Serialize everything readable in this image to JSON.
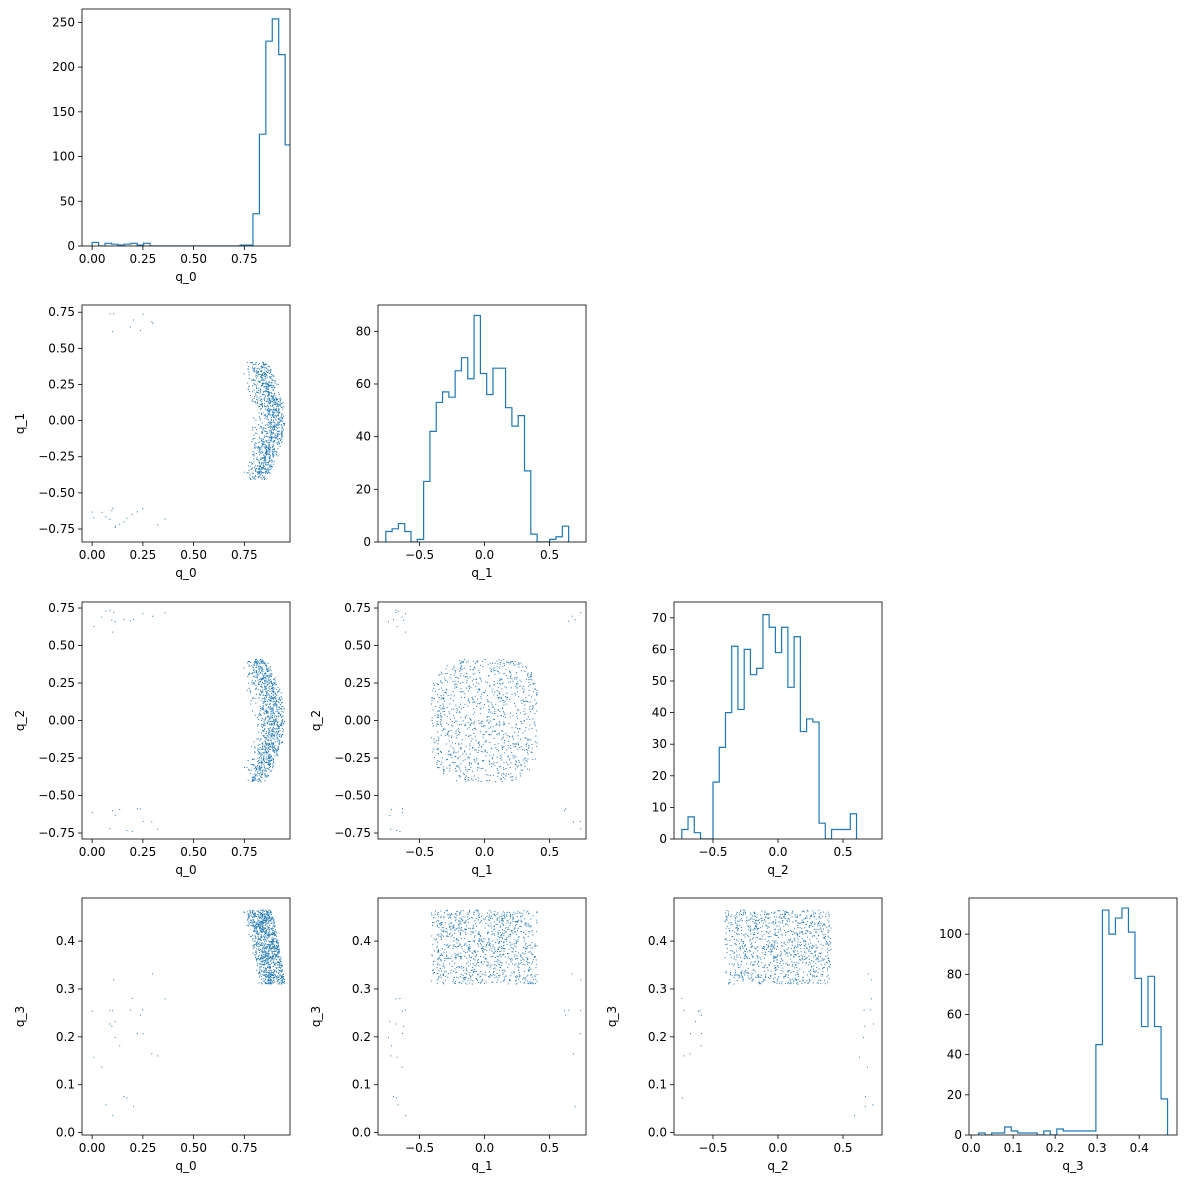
{
  "figure": {
    "type": "corner-plot",
    "variables": [
      "q_0",
      "q_1",
      "q_2",
      "q_3"
    ],
    "color": "#1f77b4"
  },
  "chart_data": [
    {
      "type": "histogram",
      "row": 0,
      "col": 0,
      "xvar": "q_0",
      "xlabel": "q_0",
      "ylabel": "",
      "xlim": [
        -0.05,
        0.975
      ],
      "ylim": [
        0,
        265
      ],
      "xticks": [
        0.0,
        0.25,
        0.5,
        0.75
      ],
      "xtick_labels": [
        "0.00",
        "0.25",
        "0.50",
        "0.75"
      ],
      "yticks": [
        0,
        50,
        100,
        150,
        200,
        250
      ],
      "ytick_labels": [
        "0",
        "50",
        "100",
        "150",
        "200",
        "250"
      ],
      "bin_start": 0.0,
      "bin_width": 0.0317,
      "counts": [
        4,
        0,
        3,
        2,
        1,
        2,
        3,
        1,
        3,
        0,
        0,
        0,
        0,
        0,
        0,
        0,
        0,
        0,
        0,
        0,
        0,
        0,
        0,
        1,
        1,
        36,
        125,
        229,
        254,
        214,
        113
      ]
    },
    {
      "type": "histogram",
      "row": 1,
      "col": 1,
      "xvar": "q_1",
      "xlabel": "q_1",
      "ylabel": "",
      "xlim": [
        -0.82,
        0.78
      ],
      "ylim": [
        0,
        90
      ],
      "xticks": [
        -0.5,
        0.0,
        0.5
      ],
      "xtick_labels": [
        "−0.5",
        "0.0",
        "0.5"
      ],
      "yticks": [
        0,
        20,
        40,
        60,
        80
      ],
      "ytick_labels": [
        "0",
        "20",
        "40",
        "60",
        "80"
      ],
      "bin_start": -0.76,
      "bin_width": 0.0485,
      "counts": [
        4,
        5,
        7,
        4,
        0,
        1,
        23,
        42,
        53,
        57,
        55,
        65,
        70,
        62,
        86,
        64,
        56,
        66,
        66,
        51,
        44,
        48,
        27,
        3,
        0,
        0,
        1,
        2,
        6
      ]
    },
    {
      "type": "histogram",
      "row": 2,
      "col": 2,
      "xvar": "q_2",
      "xlabel": "q_2",
      "ylabel": "",
      "xlim": [
        -0.8,
        0.8
      ],
      "ylim": [
        0,
        75
      ],
      "xticks": [
        -0.5,
        0.0,
        0.5
      ],
      "xtick_labels": [
        "−0.5",
        "0.0",
        "0.5"
      ],
      "yticks": [
        0,
        10,
        20,
        30,
        40,
        50,
        60,
        70
      ],
      "ytick_labels": [
        "0",
        "10",
        "20",
        "30",
        "40",
        "50",
        "60",
        "70"
      ],
      "bin_start": -0.74,
      "bin_width": 0.048,
      "counts": [
        3,
        7,
        2,
        0,
        0,
        18,
        29,
        40,
        61,
        41,
        60,
        52,
        54,
        71,
        67,
        59,
        67,
        48,
        64,
        34,
        38,
        37,
        5,
        0,
        3,
        3,
        3,
        8
      ]
    },
    {
      "type": "histogram",
      "row": 3,
      "col": 3,
      "xvar": "q_3",
      "xlabel": "q_3",
      "ylabel": "",
      "xlim": [
        -0.005,
        0.49
      ],
      "ylim": [
        0,
        118
      ],
      "xticks": [
        0.0,
        0.1,
        0.2,
        0.3,
        0.4
      ],
      "xtick_labels": [
        "0.0",
        "0.1",
        "0.2",
        "0.3",
        "0.4"
      ],
      "yticks": [
        0,
        20,
        40,
        60,
        80,
        100
      ],
      "ytick_labels": [
        "0",
        "20",
        "40",
        "60",
        "80",
        "100"
      ],
      "bin_start": 0.018,
      "bin_width": 0.0155,
      "counts": [
        1,
        0,
        1,
        1,
        4,
        2,
        1,
        1,
        1,
        0,
        2,
        0,
        3,
        2,
        2,
        2,
        2,
        2,
        45,
        112,
        100,
        108,
        113,
        101,
        78,
        54,
        79,
        54,
        18
      ]
    },
    {
      "type": "scatter",
      "row": 1,
      "col": 0,
      "xvar": "q_0",
      "yvar": "q_1",
      "xlabel": "q_0",
      "ylabel": "q_1",
      "xlim": [
        -0.05,
        0.975
      ],
      "ylim": [
        -0.84,
        0.8
      ],
      "xticks": [
        0.0,
        0.25,
        0.5,
        0.75
      ],
      "xtick_labels": [
        "0.00",
        "0.25",
        "0.50",
        "0.75"
      ],
      "yticks": [
        -0.75,
        -0.5,
        -0.25,
        0.0,
        0.25,
        0.5,
        0.75
      ],
      "ytick_labels": [
        "−0.75",
        "−0.50",
        "−0.25",
        "0.00",
        "0.25",
        "0.50",
        "0.75"
      ]
    },
    {
      "type": "scatter",
      "row": 2,
      "col": 0,
      "xvar": "q_0",
      "yvar": "q_2",
      "xlabel": "q_0",
      "ylabel": "q_2",
      "xlim": [
        -0.05,
        0.975
      ],
      "ylim": [
        -0.79,
        0.79
      ],
      "xticks": [
        0.0,
        0.25,
        0.5,
        0.75
      ],
      "xtick_labels": [
        "0.00",
        "0.25",
        "0.50",
        "0.75"
      ],
      "yticks": [
        -0.75,
        -0.5,
        -0.25,
        0.0,
        0.25,
        0.5,
        0.75
      ],
      "ytick_labels": [
        "−0.75",
        "−0.50",
        "−0.25",
        "0.00",
        "0.25",
        "0.50",
        "0.75"
      ]
    },
    {
      "type": "scatter",
      "row": 2,
      "col": 1,
      "xvar": "q_1",
      "yvar": "q_2",
      "xlabel": "q_1",
      "ylabel": "q_2",
      "xlim": [
        -0.82,
        0.78
      ],
      "ylim": [
        -0.79,
        0.79
      ],
      "xticks": [
        -0.5,
        0.0,
        0.5
      ],
      "xtick_labels": [
        "−0.5",
        "0.0",
        "0.5"
      ],
      "yticks": [
        -0.75,
        -0.5,
        -0.25,
        0.0,
        0.25,
        0.5,
        0.75
      ],
      "ytick_labels": [
        "−0.75",
        "−0.50",
        "−0.25",
        "0.00",
        "0.25",
        "0.50",
        "0.75"
      ]
    },
    {
      "type": "scatter",
      "row": 3,
      "col": 0,
      "xvar": "q_0",
      "yvar": "q_3",
      "xlabel": "q_0",
      "ylabel": "q_3",
      "xlim": [
        -0.05,
        0.975
      ],
      "ylim": [
        -0.005,
        0.49
      ],
      "xticks": [
        0.0,
        0.25,
        0.5,
        0.75
      ],
      "xtick_labels": [
        "0.00",
        "0.25",
        "0.50",
        "0.75"
      ],
      "yticks": [
        0.0,
        0.1,
        0.2,
        0.3,
        0.4
      ],
      "ytick_labels": [
        "0.0",
        "0.1",
        "0.2",
        "0.3",
        "0.4"
      ]
    },
    {
      "type": "scatter",
      "row": 3,
      "col": 1,
      "xvar": "q_1",
      "yvar": "q_3",
      "xlabel": "q_1",
      "ylabel": "q_3",
      "xlim": [
        -0.82,
        0.78
      ],
      "ylim": [
        -0.005,
        0.49
      ],
      "xticks": [
        -0.5,
        0.0,
        0.5
      ],
      "xtick_labels": [
        "−0.5",
        "0.0",
        "0.5"
      ],
      "yticks": [
        0.0,
        0.1,
        0.2,
        0.3,
        0.4
      ],
      "ytick_labels": [
        "0.0",
        "0.1",
        "0.2",
        "0.3",
        "0.4"
      ]
    },
    {
      "type": "scatter",
      "row": 3,
      "col": 2,
      "xvar": "q_2",
      "yvar": "q_3",
      "xlabel": "q_2",
      "ylabel": "q_3",
      "xlim": [
        -0.8,
        0.8
      ],
      "ylim": [
        -0.005,
        0.49
      ],
      "xticks": [
        -0.5,
        0.0,
        0.5
      ],
      "xtick_labels": [
        "−0.5",
        "0.0",
        "0.5"
      ],
      "yticks": [
        0.0,
        0.1,
        0.2,
        0.3,
        0.4
      ],
      "ytick_labels": [
        "0.0",
        "0.1",
        "0.2",
        "0.3",
        "0.4"
      ]
    }
  ]
}
